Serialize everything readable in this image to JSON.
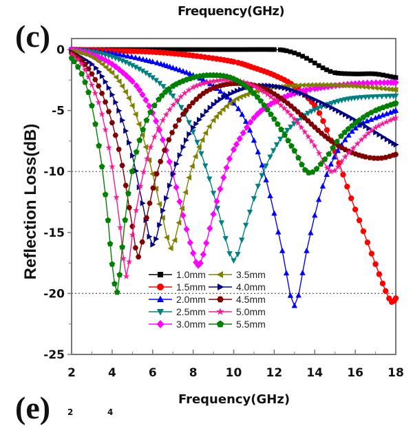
{
  "panel_labels": {
    "main": "(c)",
    "below": "(e)"
  },
  "top_cropped_axis_title": "Frequency(GHz)",
  "below_cropped_ticks": [
    "2",
    "4"
  ],
  "chart_data": {
    "type": "line",
    "title": "",
    "xlabel": "Frequency(GHz)",
    "ylabel": "Reflection Loss(dB)",
    "xlim": [
      2,
      18
    ],
    "ylim": [
      -25,
      0.5
    ],
    "xticks": [
      2,
      4,
      6,
      8,
      10,
      12,
      14,
      16,
      18
    ],
    "yticks": [
      0,
      -5,
      -10,
      -15,
      -20,
      -25
    ],
    "xtick_labels": [
      "2",
      "4",
      "6",
      "8",
      "10",
      "12",
      "14",
      "16",
      "18"
    ],
    "ytick_labels": [
      "0",
      "-5",
      "-10",
      "-15",
      "-20",
      "-25"
    ],
    "reference_lines": [
      {
        "y": -10,
        "style": "dotted"
      },
      {
        "y": -20,
        "style": "dotted"
      }
    ],
    "legend_position": "bottom-center",
    "grid": false,
    "series": [
      {
        "name": "1.0mm",
        "color": "#000000",
        "marker": "square",
        "x": [
          2,
          4,
          6,
          8,
          10,
          12,
          12.6,
          13.2,
          13.8,
          14.4,
          15,
          16,
          17,
          18
        ],
        "y": [
          0,
          0,
          0,
          0,
          0,
          0,
          -0.1,
          -0.4,
          -0.9,
          -1.5,
          -1.9,
          -2.0,
          -2.0,
          -2.3
        ]
      },
      {
        "name": "1.5mm",
        "color": "#ff0000",
        "marker": "circle",
        "x": [
          2,
          4,
          6,
          8,
          10,
          11,
          12,
          13,
          14,
          14.6,
          15.2,
          15.8,
          16.4,
          17,
          17.5,
          17.8,
          18
        ],
        "y": [
          0,
          -0.1,
          -0.2,
          -0.5,
          -1.0,
          -1.5,
          -2.1,
          -3.0,
          -4.6,
          -6.6,
          -9.3,
          -12.2,
          -14.9,
          -17.6,
          -19.8,
          -20.7,
          -20.4
        ]
      },
      {
        "name": "2.0mm",
        "color": "#0000ff",
        "marker": "triangle-up",
        "x": [
          2,
          4,
          6,
          7,
          8,
          9,
          10,
          10.6,
          11.2,
          11.8,
          12.4,
          13,
          13.6,
          14.2,
          14.8,
          15.5,
          16.2,
          17,
          18
        ],
        "y": [
          0,
          -0.3,
          -1.0,
          -1.5,
          -2.1,
          -3.0,
          -4.4,
          -5.9,
          -8.4,
          -12,
          -16.5,
          -21,
          -16.5,
          -12.3,
          -9.4,
          -7.4,
          -6.2,
          -5.6,
          -5.0
        ]
      },
      {
        "name": "2.5mm",
        "color": "#008080",
        "marker": "triangle-down",
        "x": [
          2,
          3,
          4,
          5,
          6,
          7,
          7.6,
          8.2,
          8.8,
          9.4,
          10,
          10.6,
          11.2,
          11.8,
          12.5,
          13.5,
          14.5,
          15.5,
          16.5,
          18
        ],
        "y": [
          0,
          -0.2,
          -0.6,
          -1.3,
          -2.3,
          -3.8,
          -5.3,
          -7.6,
          -10.6,
          -14.2,
          -17.3,
          -14.4,
          -11.2,
          -8.8,
          -6.9,
          -5.4,
          -4.6,
          -4.1,
          -3.9,
          -3.8
        ]
      },
      {
        "name": "3.0mm",
        "color": "#ff00ff",
        "marker": "diamond",
        "x": [
          2,
          3,
          4,
          5,
          5.5,
          6,
          6.5,
          7,
          7.5,
          8,
          8.25,
          8.5,
          9,
          9.5,
          10,
          11,
          12,
          13,
          14,
          16,
          18
        ],
        "y": [
          0,
          -0.4,
          -1.2,
          -2.6,
          -3.7,
          -5.2,
          -7.4,
          -10.2,
          -13.6,
          -16.7,
          -17.7,
          -16.8,
          -13.5,
          -10.5,
          -8.2,
          -5.6,
          -4.3,
          -3.6,
          -3.2,
          -2.8,
          -2.7
        ]
      },
      {
        "name": "3.5mm",
        "color": "#808000",
        "marker": "triangle-left",
        "x": [
          2,
          3,
          4,
          4.5,
          5,
          5.5,
          6,
          6.5,
          6.9,
          7.3,
          7.8,
          8.3,
          9,
          10,
          11,
          12,
          14,
          16,
          18
        ],
        "y": [
          -0.1,
          -0.6,
          -1.9,
          -3.0,
          -4.6,
          -7.0,
          -10.2,
          -13.8,
          -16.3,
          -14.2,
          -10.5,
          -8.0,
          -5.8,
          -4.2,
          -3.5,
          -3.1,
          -2.9,
          -3.0,
          -3.3
        ]
      },
      {
        "name": "4.0mm",
        "color": "#000080",
        "marker": "triangle-right",
        "x": [
          2,
          3,
          3.5,
          4,
          4.5,
          5,
          5.5,
          6,
          6.5,
          7,
          7.5,
          8,
          9,
          10,
          11,
          12,
          13,
          14,
          15,
          16,
          17,
          18
        ],
        "y": [
          -0.2,
          -1.2,
          -2.2,
          -3.7,
          -5.8,
          -8.7,
          -12.6,
          -16.0,
          -13.2,
          -10.2,
          -8.0,
          -6.4,
          -4.5,
          -3.5,
          -3.0,
          -3.0,
          -3.4,
          -4.1,
          -4.9,
          -5.8,
          -6.8,
          -7.8
        ]
      },
      {
        "name": "4.5mm",
        "color": "#800000",
        "marker": "hexagon",
        "x": [
          2,
          2.5,
          3,
          3.5,
          4,
          4.5,
          5,
          5.3,
          5.7,
          6.2,
          6.8,
          7.5,
          8.5,
          9.5,
          10.5,
          11.5,
          12.5,
          13.5,
          14.5,
          15.5,
          16.5,
          17.3,
          18
        ],
        "y": [
          -0.3,
          -0.9,
          -2.0,
          -3.6,
          -6.0,
          -9.5,
          -14.5,
          -17.0,
          -13.8,
          -10.2,
          -7.4,
          -5.3,
          -3.6,
          -2.9,
          -2.8,
          -3.2,
          -4.2,
          -5.6,
          -7.1,
          -8.2,
          -8.8,
          -8.9,
          -8.6
        ]
      },
      {
        "name": "5.0mm",
        "color": "#ff1493",
        "marker": "star",
        "x": [
          2,
          2.5,
          3,
          3.5,
          4,
          4.4,
          4.7,
          5.0,
          5.4,
          5.9,
          6.5,
          7.2,
          8,
          9,
          10,
          11,
          12,
          13,
          14,
          14.8,
          15.5,
          16.3,
          17,
          18
        ],
        "y": [
          -0.4,
          -1.2,
          -2.9,
          -5.3,
          -9.6,
          -14.6,
          -18.6,
          -15.2,
          -11.2,
          -8.0,
          -5.8,
          -4.2,
          -3.1,
          -2.6,
          -2.5,
          -3.0,
          -4.1,
          -5.7,
          -7.9,
          -10.0,
          -8.8,
          -7.4,
          -6.4,
          -5.6
        ]
      },
      {
        "name": "5.5mm",
        "color": "#008000",
        "marker": "pentagon",
        "x": [
          2,
          2.5,
          3,
          3.5,
          3.8,
          4.0,
          4.25,
          4.5,
          4.8,
          5.2,
          5.7,
          6.3,
          7,
          8,
          9,
          10,
          11,
          12,
          13,
          13.7,
          14.5,
          15.3,
          16.2,
          17,
          18
        ],
        "y": [
          -0.7,
          -2.0,
          -4.6,
          -9.6,
          -14.0,
          -17.6,
          -19.9,
          -16.2,
          -11.8,
          -8.4,
          -5.8,
          -4.1,
          -3.0,
          -2.3,
          -2.1,
          -2.4,
          -3.6,
          -5.7,
          -8.3,
          -10.1,
          -9.0,
          -7.1,
          -5.8,
          -5.0,
          -4.4
        ]
      }
    ]
  }
}
